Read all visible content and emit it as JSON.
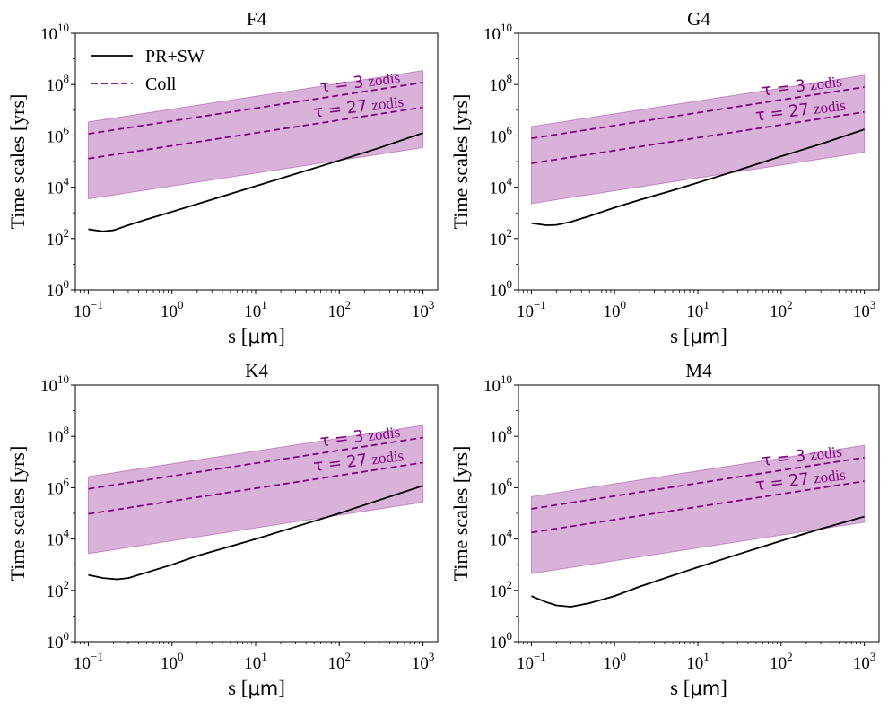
{
  "chart_data": [
    {
      "type": "line",
      "title": "F4",
      "xlabel_prefix": "s [",
      "xlabel_unit": "μm",
      "xlabel_suffix": "]",
      "ylabel": "Time scales [yrs]",
      "x_scale": "log",
      "y_scale": "log",
      "xlim": [
        0.07,
        1500
      ],
      "ylim": [
        1,
        10000000000
      ],
      "x_ticks": [
        0.1,
        1,
        10,
        100,
        1000
      ],
      "y_ticks": [
        1,
        100,
        10000,
        1000000,
        100000000,
        10000000000
      ],
      "legend": {
        "placement": "upper-left",
        "entries": [
          "PR+SW",
          "Coll"
        ]
      },
      "series": [
        {
          "name": "PR+SW",
          "style": "solid",
          "color": "#000000",
          "x": [
            0.1,
            0.15,
            0.2,
            0.3,
            0.5,
            1,
            2,
            5,
            10,
            30,
            100,
            300,
            1000
          ],
          "y": [
            230,
            190,
            210,
            330,
            560,
            1100,
            2200,
            5500,
            11000,
            33000,
            110000,
            340000,
            1300000
          ]
        },
        {
          "label": "τ = 3 zodis",
          "style": "dashed",
          "color": "#800080",
          "x": [
            0.1,
            1000
          ],
          "y": [
            1200000,
            120000000
          ]
        },
        {
          "label": "τ = 27 zodis",
          "style": "dashed",
          "color": "#800080",
          "x": [
            0.1,
            1000
          ],
          "y": [
            130000,
            13000000
          ]
        }
      ],
      "band": {
        "color": "#800080",
        "x": [
          0.1,
          1000
        ],
        "upper": [
          3500000,
          350000000
        ],
        "lower": [
          3500,
          350000
        ]
      },
      "annotations": [
        {
          "text_sym": "τ = 3",
          "text_word": "zodis",
          "anchor": [
            60,
            50000000
          ]
        },
        {
          "text_sym": "τ = 27",
          "text_word": "zodis",
          "anchor": [
            50,
            5200000
          ]
        }
      ]
    },
    {
      "type": "line",
      "title": "G4",
      "xlabel_prefix": "s [",
      "xlabel_unit": "μm",
      "xlabel_suffix": "]",
      "ylabel": "Time scales [yrs]",
      "x_scale": "log",
      "y_scale": "log",
      "xlim": [
        0.07,
        1500
      ],
      "ylim": [
        1,
        10000000000
      ],
      "x_ticks": [
        0.1,
        1,
        10,
        100,
        1000
      ],
      "y_ticks": [
        1,
        100,
        10000,
        1000000,
        100000000,
        10000000000
      ],
      "series": [
        {
          "name": "PR+SW",
          "style": "solid",
          "color": "#000000",
          "x": [
            0.1,
            0.15,
            0.2,
            0.3,
            0.5,
            1,
            2,
            5,
            10,
            30,
            100,
            300,
            1000
          ],
          "y": [
            400,
            330,
            340,
            450,
            750,
            1600,
            3200,
            7500,
            15000,
            45000,
            160000,
            480000,
            1800000
          ]
        },
        {
          "label": "τ = 3 zodis",
          "style": "dashed",
          "color": "#800080",
          "x": [
            0.1,
            1000
          ],
          "y": [
            800000,
            80000000
          ]
        },
        {
          "label": "τ = 27 zodis",
          "style": "dashed",
          "color": "#800080",
          "x": [
            0.1,
            1000
          ],
          "y": [
            85000,
            8500000
          ]
        }
      ],
      "band": {
        "color": "#800080",
        "x": [
          0.1,
          1000
        ],
        "upper": [
          2300000,
          230000000
        ],
        "lower": [
          2300,
          230000
        ]
      },
      "annotations": [
        {
          "text_sym": "τ = 3",
          "text_word": "zodis",
          "anchor": [
            60,
            36000000
          ]
        },
        {
          "text_sym": "τ = 27",
          "text_word": "zodis",
          "anchor": [
            50,
            3800000
          ]
        }
      ]
    },
    {
      "type": "line",
      "title": "K4",
      "xlabel_prefix": "s [",
      "xlabel_unit": "μm",
      "xlabel_suffix": "]",
      "ylabel": "Time scales [yrs]",
      "x_scale": "log",
      "y_scale": "log",
      "xlim": [
        0.07,
        1500
      ],
      "ylim": [
        1,
        10000000000
      ],
      "x_ticks": [
        0.1,
        1,
        10,
        100,
        1000
      ],
      "y_ticks": [
        1,
        100,
        10000,
        1000000,
        100000000,
        10000000000
      ],
      "series": [
        {
          "name": "PR+SW",
          "style": "solid",
          "color": "#000000",
          "x": [
            0.1,
            0.15,
            0.22,
            0.3,
            0.5,
            1,
            2,
            5,
            10,
            30,
            100,
            300,
            1000
          ],
          "y": [
            400,
            300,
            270,
            300,
            500,
            1000,
            2200,
            5200,
            10000,
            30000,
            100000,
            330000,
            1200000
          ]
        },
        {
          "label": "τ = 3 zodis",
          "style": "dashed",
          "color": "#800080",
          "x": [
            0.1,
            1000
          ],
          "y": [
            900000,
            90000000
          ]
        },
        {
          "label": "τ = 27 zodis",
          "style": "dashed",
          "color": "#800080",
          "x": [
            0.1,
            1000
          ],
          "y": [
            95000,
            9500000
          ]
        }
      ],
      "band": {
        "color": "#800080",
        "x": [
          0.1,
          1000
        ],
        "upper": [
          2700000,
          270000000
        ],
        "lower": [
          2700,
          270000
        ]
      },
      "annotations": [
        {
          "text_sym": "τ = 3",
          "text_word": "zodis",
          "anchor": [
            60,
            40000000
          ]
        },
        {
          "text_sym": "τ = 27",
          "text_word": "zodis",
          "anchor": [
            50,
            4300000
          ]
        }
      ]
    },
    {
      "type": "line",
      "title": "M4",
      "xlabel_prefix": "s [",
      "xlabel_unit": "μm",
      "xlabel_suffix": "]",
      "ylabel": "Time scales [yrs]",
      "x_scale": "log",
      "y_scale": "log",
      "xlim": [
        0.07,
        1500
      ],
      "ylim": [
        1,
        10000000000
      ],
      "x_ticks": [
        0.1,
        1,
        10,
        100,
        1000
      ],
      "y_ticks": [
        1,
        100,
        10000,
        1000000,
        100000000,
        10000000000
      ],
      "series": [
        {
          "name": "PR+SW",
          "style": "solid",
          "color": "#000000",
          "x": [
            0.1,
            0.15,
            0.2,
            0.3,
            0.5,
            1,
            2,
            5,
            10,
            30,
            100,
            300,
            1000
          ],
          "y": [
            60,
            35,
            26,
            23,
            32,
            60,
            140,
            380,
            800,
            2500,
            8500,
            25000,
            75000
          ]
        },
        {
          "label": "τ = 3 zodis",
          "style": "dashed",
          "color": "#800080",
          "x": [
            0.1,
            1000
          ],
          "y": [
            150000,
            15000000
          ]
        },
        {
          "label": "τ = 27 zodis",
          "style": "dashed",
          "color": "#800080",
          "x": [
            0.1,
            1000
          ],
          "y": [
            18000,
            1800000
          ]
        }
      ],
      "band": {
        "color": "#800080",
        "x": [
          0.1,
          1000
        ],
        "upper": [
          450000,
          45000000
        ],
        "lower": [
          450,
          45000
        ]
      },
      "annotations": [
        {
          "text_sym": "τ = 3",
          "text_word": "zodis",
          "anchor": [
            60,
            7000000
          ]
        },
        {
          "text_sym": "τ = 27",
          "text_word": "zodis",
          "anchor": [
            50,
            780000
          ]
        }
      ]
    }
  ]
}
